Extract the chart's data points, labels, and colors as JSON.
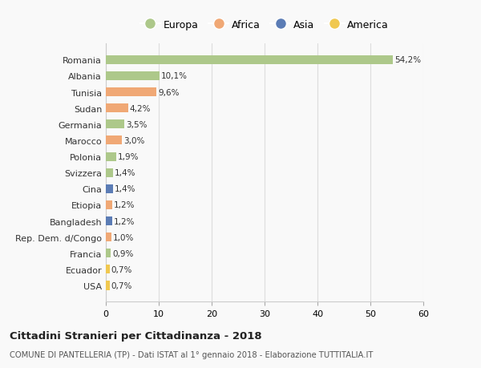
{
  "countries": [
    "Romania",
    "Albania",
    "Tunisia",
    "Sudan",
    "Germania",
    "Marocco",
    "Polonia",
    "Svizzera",
    "Cina",
    "Etiopia",
    "Bangladesh",
    "Rep. Dem. d/Congo",
    "Francia",
    "Ecuador",
    "USA"
  ],
  "values": [
    54.2,
    10.1,
    9.6,
    4.2,
    3.5,
    3.0,
    1.9,
    1.4,
    1.4,
    1.2,
    1.2,
    1.0,
    0.9,
    0.7,
    0.7
  ],
  "labels": [
    "54,2%",
    "10,1%",
    "9,6%",
    "4,2%",
    "3,5%",
    "3,0%",
    "1,9%",
    "1,4%",
    "1,4%",
    "1,2%",
    "1,2%",
    "1,0%",
    "0,9%",
    "0,7%",
    "0,7%"
  ],
  "continents": [
    "Europa",
    "Europa",
    "Africa",
    "Africa",
    "Europa",
    "Africa",
    "Europa",
    "Europa",
    "Asia",
    "Africa",
    "Asia",
    "Africa",
    "Europa",
    "America",
    "America"
  ],
  "colors": {
    "Europa": "#adc88a",
    "Africa": "#f0a875",
    "Asia": "#5b7cb5",
    "America": "#f0c850"
  },
  "legend_order": [
    "Europa",
    "Africa",
    "Asia",
    "America"
  ],
  "title": "Cittadini Stranieri per Cittadinanza - 2018",
  "subtitle": "COMUNE DI PANTELLERIA (TP) - Dati ISTAT al 1° gennaio 2018 - Elaborazione TUTTITALIA.IT",
  "xlim": [
    0,
    60
  ],
  "xticks": [
    0,
    10,
    20,
    30,
    40,
    50,
    60
  ],
  "background_color": "#f9f9f9",
  "grid_color": "#dddddd",
  "bar_height": 0.55
}
